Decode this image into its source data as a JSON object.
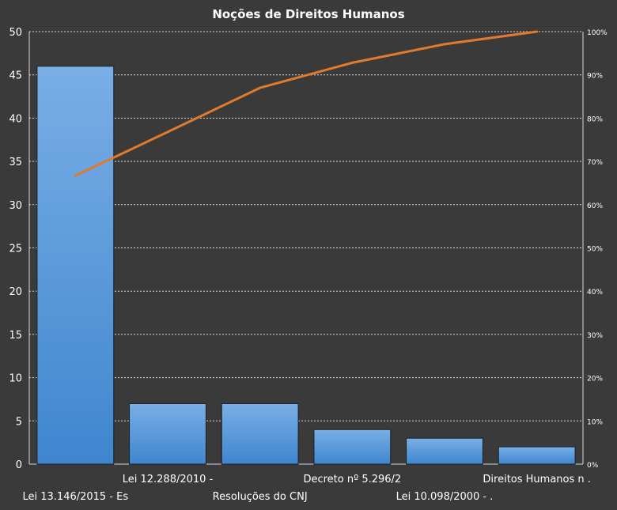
{
  "chart_data": {
    "type": "bar",
    "title": "Noções de Direitos  Humanos",
    "categories": [
      "Lei 13.146/2015 - Es",
      "Lei 12.288/2010 -",
      "Resoluções do CNJ",
      "Decreto nº 5.296/2",
      "Lei 10.098/2000 - .",
      "Direitos Humanos  n ."
    ],
    "values": [
      46,
      7,
      7,
      4,
      3,
      2
    ],
    "cumulative_percent": [
      66.7,
      76.8,
      87.0,
      92.8,
      97.1,
      100
    ],
    "ylim": [
      0,
      50
    ],
    "y_ticks": [
      0,
      5,
      10,
      15,
      20,
      25,
      30,
      35,
      40,
      45,
      50
    ],
    "y2lim": [
      0,
      100
    ],
    "y2_ticks": [
      "0%",
      "10%",
      "20%",
      "30%",
      "40%",
      "50%",
      "60%",
      "70%",
      "80%",
      "90%",
      "100%"
    ],
    "grid": true,
    "colors": {
      "background": "#3a3a3a",
      "bar_top": "#7aaee6",
      "bar_bottom": "#3f86cf",
      "line": "#e07a2e",
      "text": "#ffffff",
      "grid": "#d9d9d9"
    }
  }
}
